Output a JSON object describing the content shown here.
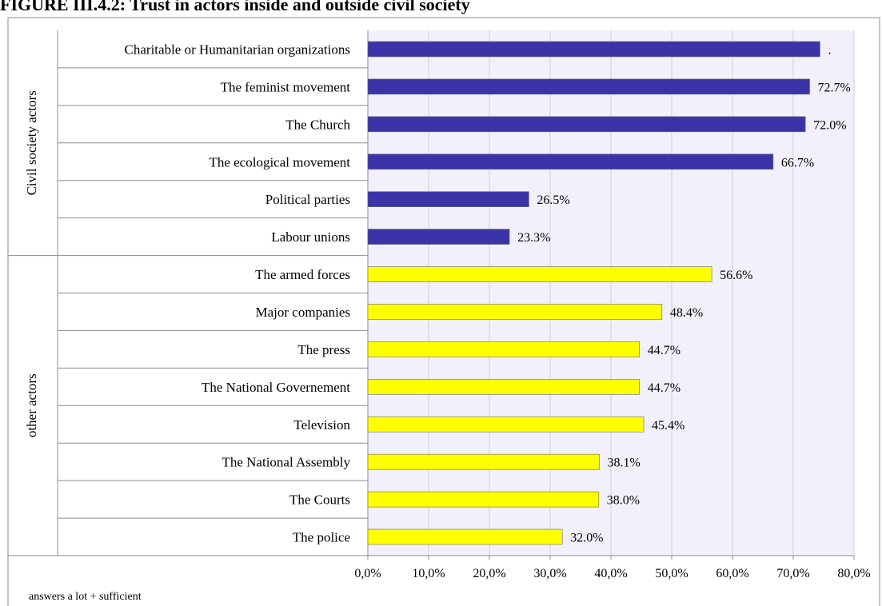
{
  "title": "FIGURE III.4.2: Trust in actors inside and outside civil society",
  "chart_data": {
    "type": "bar",
    "orientation": "horizontal",
    "groups": [
      {
        "label": "Civil society actors",
        "color": "#3b33a8",
        "categories": [
          "Charitable or Humanitarian organizations",
          "The feminist movement",
          "The Church",
          "The ecological movement",
          "Political parties",
          "Labour unions"
        ],
        "values": [
          74.4,
          72.7,
          72.0,
          66.7,
          26.5,
          23.3
        ],
        "value_labels": [
          ".",
          "72.7%",
          "72.0%",
          "66.7%",
          "26.5%",
          "23.3%"
        ]
      },
      {
        "label": "other actors",
        "color": "#ffff00",
        "categories": [
          "The armed forces",
          "Major companies",
          "The press",
          "The National Governement",
          "Television",
          "The National Assembly",
          "The Courts",
          "The police"
        ],
        "values": [
          56.6,
          48.4,
          44.7,
          44.7,
          45.4,
          38.1,
          38.0,
          32.0
        ],
        "value_labels": [
          "56.6%",
          "48.4%",
          "44.7%",
          "44.7%",
          "45.4%",
          "38.1%",
          "38.0%",
          "32.0%"
        ]
      }
    ],
    "xlim": [
      0,
      80
    ],
    "x_ticks": [
      0,
      10,
      20,
      30,
      40,
      50,
      60,
      70,
      80
    ],
    "x_tick_labels": [
      "0,0%",
      "10,0%",
      "20,0%",
      "30,0%",
      "40,0%",
      "50,0%",
      "60,0%",
      "70,0%",
      "80,0%"
    ],
    "xlabel": "answers a lot + sufficient",
    "ylabel": "",
    "grid": true,
    "plot_background": "#f2f0fb",
    "legend": "none"
  }
}
